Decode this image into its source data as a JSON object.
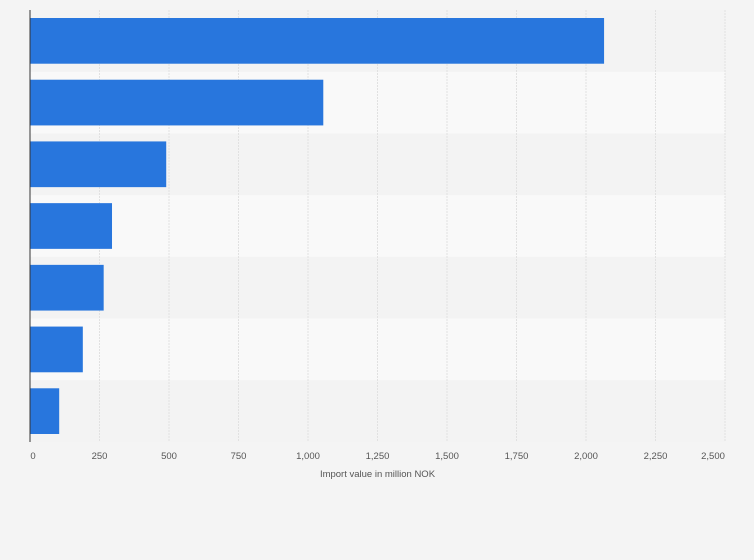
{
  "chart_data": {
    "type": "bar",
    "orientation": "horizontal",
    "categories": [
      "",
      "",
      "",
      "",
      "",
      "",
      ""
    ],
    "values": [
      2065,
      1055,
      490,
      295,
      265,
      190,
      105
    ],
    "title": "",
    "xlabel": "Import value in million NOK",
    "ylabel": "",
    "xlim": [
      0,
      2500
    ],
    "x_ticks": [
      0,
      250,
      500,
      750,
      1000,
      1250,
      1500,
      1750,
      2000,
      2250,
      2500
    ],
    "x_tick_labels": [
      "0",
      "250",
      "500",
      "750",
      "1,000",
      "1,250",
      "1,500",
      "1,750",
      "2,000",
      "2,250",
      "2,500"
    ],
    "grid": "vertical",
    "bar_color": "#2876dd",
    "band_colors": [
      "#f3f3f3",
      "#f9f9f9"
    ],
    "gridline_color": "#e1e1e1",
    "axis_color": "#333333"
  }
}
